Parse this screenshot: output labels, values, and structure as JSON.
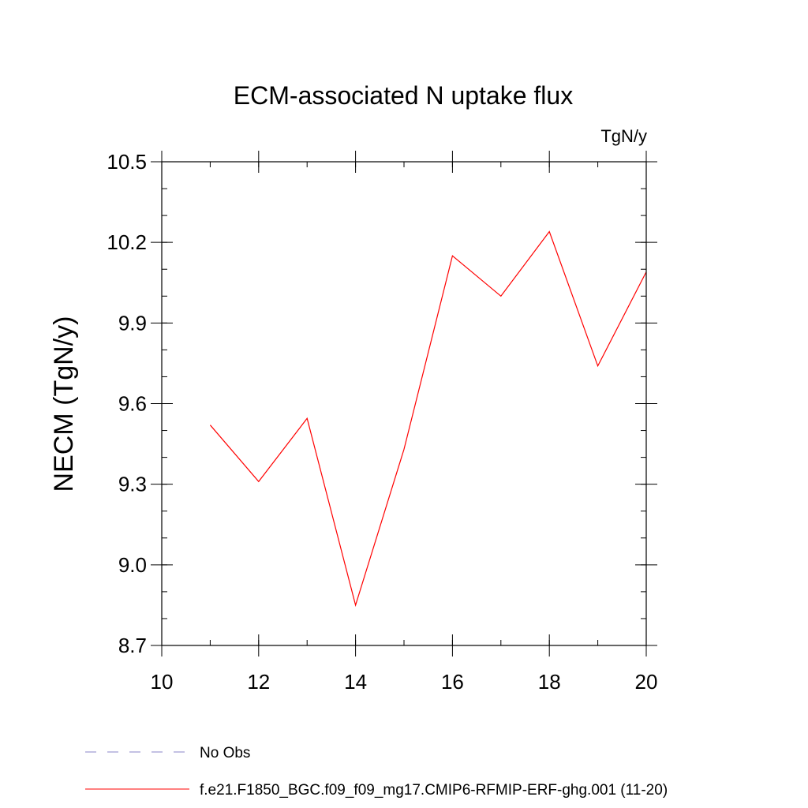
{
  "chart_data": {
    "type": "line",
    "title": "ECM-associated N uptake flux",
    "units": "TgN/y",
    "xlabel": "",
    "ylabel": "NECM  (TgN/y)",
    "xlim": [
      10,
      20
    ],
    "ylim": [
      8.7,
      10.5
    ],
    "x_ticks": [
      10,
      12,
      14,
      16,
      18,
      20
    ],
    "y_ticks": [
      "8.7",
      "9.0",
      "9.3",
      "9.6",
      "9.9",
      "10.2",
      "10.5"
    ],
    "y_minor_step": 0.1,
    "x_minor_step": 1,
    "grid": false,
    "legend_position": "bottom",
    "series": [
      {
        "name": "f.e21.F1850_BGC.f09_f09_mg17.CMIP6-RFMIP-ERF-ghg.001 (11-20)",
        "color": "#ff0000",
        "dash": "solid",
        "x": [
          11,
          12,
          13,
          14,
          15,
          16,
          17,
          18,
          19,
          20
        ],
        "values": [
          9.52,
          9.31,
          9.545,
          8.85,
          9.43,
          10.15,
          10.0,
          10.24,
          9.74,
          10.09
        ]
      }
    ],
    "legend": [
      {
        "label": "No Obs",
        "color": "#8a86c8",
        "dash": "dashed"
      },
      {
        "label": "f.e21.F1850_BGC.f09_f09_mg17.CMIP6-RFMIP-ERF-ghg.001 (11-20)",
        "color": "#ff0000",
        "dash": "solid"
      }
    ]
  }
}
